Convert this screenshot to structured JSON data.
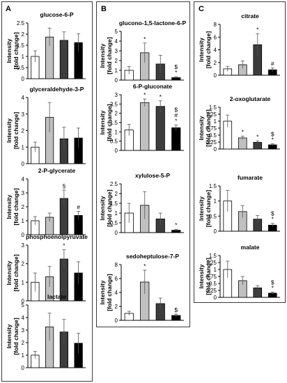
{
  "panels": [
    {
      "letter": "A"
    },
    {
      "letter": "B"
    },
    {
      "letter": "C"
    }
  ],
  "y_axis_label": [
    "Intensity",
    "[fold change]"
  ],
  "chart_data": [
    {
      "type": "bar",
      "panel": "A",
      "title": "glucose-6-P",
      "ylim": [
        0,
        2.5
      ],
      "ticks": [
        "0",
        "0.5",
        "1",
        "1.5",
        "2",
        "2.5"
      ],
      "values": [
        1.0,
        1.87,
        1.72,
        1.62
      ],
      "errors": [
        0.25,
        0.4,
        0.38,
        0.4
      ],
      "annotations": [
        "",
        "",
        "",
        ""
      ],
      "colors": [
        "#ffffff",
        "#c0c0c0",
        "#3c3c3c",
        "#000000"
      ]
    },
    {
      "type": "bar",
      "panel": "A",
      "title": "glyceraldehyde-3-P",
      "ylim": [
        0,
        4
      ],
      "ticks": [
        "0",
        "1",
        "2",
        "3",
        "4"
      ],
      "values": [
        1.0,
        2.8,
        1.5,
        1.55
      ],
      "errors": [
        0.3,
        0.9,
        0.7,
        0.6
      ],
      "annotations": [
        "",
        "",
        "",
        ""
      ],
      "colors": [
        "#ffffff",
        "#c0c0c0",
        "#3c3c3c",
        "#000000"
      ]
    },
    {
      "type": "bar",
      "panel": "A",
      "title": "2-P-glycerate",
      "ylim": [
        0,
        4
      ],
      "ticks": [
        "0",
        "1",
        "2",
        "3",
        "4"
      ],
      "values": [
        1.0,
        1.25,
        2.6,
        1.38
      ],
      "errors": [
        0.3,
        0.3,
        0.6,
        0.3
      ],
      "annotations": [
        "",
        "",
        "§",
        "#"
      ],
      "colors": [
        "#ffffff",
        "#c0c0c0",
        "#3c3c3c",
        "#000000"
      ]
    },
    {
      "type": "bar",
      "panel": "A",
      "title": "phosphoenolpyruvate",
      "ylim": [
        0,
        3
      ],
      "ticks": [
        "0",
        "1",
        "2",
        "3"
      ],
      "values": [
        1.0,
        1.3,
        2.25,
        1.5
      ],
      "errors": [
        0.5,
        0.55,
        0.5,
        0.6
      ],
      "annotations": [
        "",
        "",
        "*",
        ""
      ],
      "colors": [
        "#ffffff",
        "#c0c0c0",
        "#3c3c3c",
        "#000000"
      ]
    },
    {
      "type": "bar",
      "panel": "A",
      "title": "lactate",
      "ylim": [
        0,
        5
      ],
      "ticks": [
        "0",
        "1",
        "2",
        "3",
        "4",
        "5"
      ],
      "values": [
        1.0,
        3.25,
        2.85,
        1.95
      ],
      "errors": [
        0.3,
        1.1,
        1.0,
        0.8
      ],
      "annotations": [
        "",
        "",
        "",
        ""
      ],
      "colors": [
        "#ffffff",
        "#c0c0c0",
        "#3c3c3c",
        "#000000"
      ]
    },
    {
      "type": "bar",
      "panel": "B",
      "title": "glucono-1,5-lactone-6-P",
      "ylim": [
        0,
        5
      ],
      "ticks": [
        "0",
        "1",
        "2",
        "3",
        "4",
        "5"
      ],
      "values": [
        1.0,
        2.8,
        1.65,
        0.25
      ],
      "errors": [
        0.4,
        1.0,
        0.9,
        0.1
      ],
      "annotations": [
        "",
        "*",
        "",
        "$\n*"
      ],
      "colors": [
        "#ffffff",
        "#c0c0c0",
        "#3c3c3c",
        "#000000"
      ]
    },
    {
      "type": "bar",
      "panel": "B",
      "title": "6-P-gluconate",
      "ylim": [
        0,
        3
      ],
      "ticks": [
        "0",
        "0.5",
        "1",
        "1.5",
        "2",
        "2.5",
        "3"
      ],
      "values": [
        1.1,
        2.57,
        2.37,
        1.22
      ],
      "errors": [
        0.3,
        0.2,
        0.3,
        0.15
      ],
      "annotations": [
        "",
        "*",
        "*",
        "$\n#\n*"
      ],
      "colors": [
        "#ffffff",
        "#c0c0c0",
        "#3c3c3c",
        "#000000"
      ]
    },
    {
      "type": "bar",
      "panel": "B",
      "title": "xylulose-5-P",
      "ylim": [
        0,
        2.5
      ],
      "ticks": [
        "0",
        "0.5",
        "1",
        "1.5",
        "2",
        "2.5"
      ],
      "values": [
        1.0,
        1.4,
        0.7,
        0.12
      ],
      "errors": [
        0.5,
        0.7,
        0.3,
        0.05
      ],
      "annotations": [
        "",
        "",
        "",
        "*"
      ],
      "colors": [
        "#ffffff",
        "#c0c0c0",
        "#3c3c3c",
        "#000000"
      ]
    },
    {
      "type": "bar",
      "panel": "B",
      "title": "sedoheptulose-7-P",
      "ylim": [
        0,
        8
      ],
      "ticks": [
        "0",
        "2",
        "4",
        "6",
        "8"
      ],
      "values": [
        1.0,
        5.5,
        2.4,
        0.7
      ],
      "errors": [
        0.3,
        1.7,
        0.8,
        0.2
      ],
      "annotations": [
        "",
        "*",
        "",
        "$"
      ],
      "colors": [
        "#ffffff",
        "#c0c0c0",
        "#3c3c3c",
        "#000000"
      ]
    },
    {
      "type": "bar",
      "panel": "C",
      "title": "citrate",
      "ylim": [
        0,
        8
      ],
      "ticks": [
        "0",
        "2",
        "4",
        "6",
        "8"
      ],
      "values": [
        1.0,
        1.65,
        4.8,
        0.85
      ],
      "errors": [
        0.4,
        0.6,
        1.7,
        0.3
      ],
      "annotations": [
        "",
        "",
        "*",
        "#"
      ],
      "colors": [
        "#ffffff",
        "#c0c0c0",
        "#3c3c3c",
        "#000000"
      ]
    },
    {
      "type": "bar",
      "panel": "C",
      "title": "2-oxoglutarate",
      "ylim": [
        0,
        1.5
      ],
      "ticks": [
        "0",
        "0.25",
        "0.5",
        "0.75",
        "1",
        "1.25",
        "1.5"
      ],
      "values": [
        1.0,
        0.4,
        0.24,
        0.15
      ],
      "errors": [
        0.22,
        0.06,
        0.05,
        0.04
      ],
      "annotations": [
        "",
        "*",
        "*",
        "$\n*"
      ],
      "colors": [
        "#ffffff",
        "#c0c0c0",
        "#3c3c3c",
        "#000000"
      ]
    },
    {
      "type": "bar",
      "panel": "C",
      "title": "fumarate",
      "ylim": [
        0,
        1.5
      ],
      "ticks": [
        "0",
        "0.5",
        "1",
        "1.5"
      ],
      "values": [
        1.0,
        0.65,
        0.4,
        0.2
      ],
      "errors": [
        0.35,
        0.2,
        0.12,
        0.06
      ],
      "annotations": [
        "",
        "",
        "",
        "$\n*"
      ],
      "colors": [
        "#ffffff",
        "#c0c0c0",
        "#3c3c3c",
        "#000000"
      ]
    },
    {
      "type": "bar",
      "panel": "C",
      "title": "malate",
      "ylim": [
        0,
        1.5
      ],
      "ticks": [
        "0",
        "0.25",
        "0.5",
        "0.75",
        "1",
        "1.25",
        "1.5"
      ],
      "values": [
        1.0,
        0.6,
        0.34,
        0.15
      ],
      "errors": [
        0.3,
        0.15,
        0.08,
        0.04
      ],
      "annotations": [
        "",
        "",
        "",
        "$\n*"
      ],
      "colors": [
        "#ffffff",
        "#c0c0c0",
        "#3c3c3c",
        "#000000"
      ]
    }
  ]
}
